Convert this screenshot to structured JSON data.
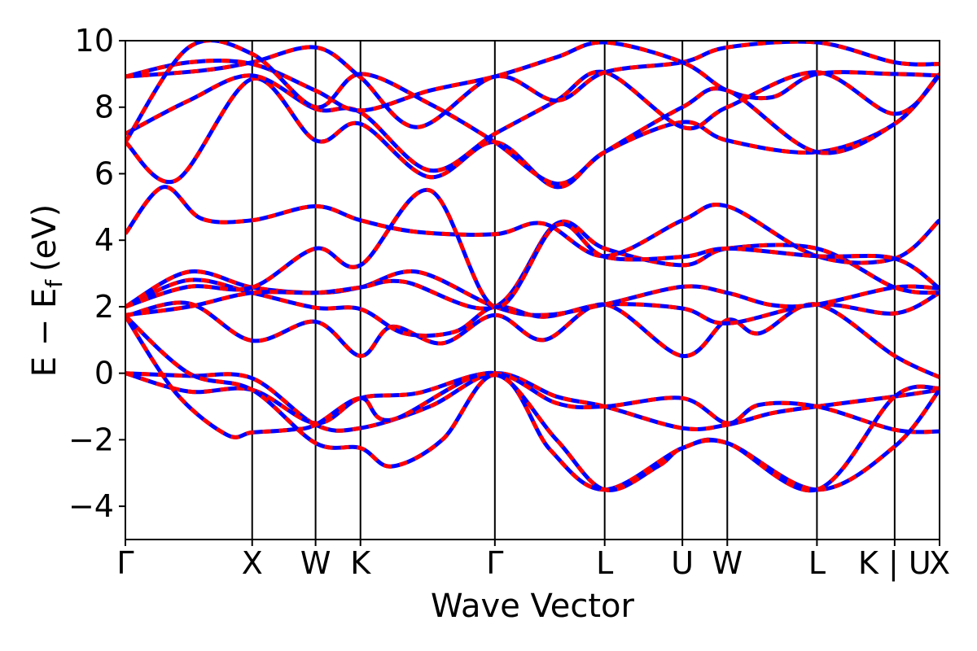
{
  "chart_data": {
    "type": "line",
    "title": "",
    "xlabel": "Wave Vector",
    "ylabel": "E − E",
    "ylabel_subscript": "f",
    "ylabel_unit": "(eV)",
    "ylim": [
      -5,
      10
    ],
    "yticks": [
      -4,
      -2,
      0,
      2,
      4,
      6,
      8,
      10
    ],
    "ytick_labels": [
      "−4",
      "−2",
      "0",
      "2",
      "4",
      "6",
      "8",
      "10"
    ],
    "kpoints": [
      {
        "label": "Γ",
        "k": 0.0
      },
      {
        "label": "X",
        "k": 1.0
      },
      {
        "label": "W",
        "k": 1.5
      },
      {
        "label": "K",
        "k": 1.854
      },
      {
        "label": "Γ",
        "k": 2.914
      },
      {
        "label": "L",
        "k": 3.78
      },
      {
        "label": "U",
        "k": 4.393
      },
      {
        "label": "W",
        "k": 4.747
      },
      {
        "label": "L",
        "k": 5.454
      },
      {
        "label": "K | U",
        "k": 6.067
      },
      {
        "label": "X",
        "k": 6.421
      }
    ],
    "xlim": [
      0,
      6.421
    ],
    "grid": false,
    "legend": "none",
    "series_style": [
      {
        "color": "#0000ff",
        "dash": "none",
        "width": 5
      },
      {
        "color": "#ff0000",
        "dash": "10 10",
        "width": 5
      }
    ],
    "series": [
      {
        "values": [
          [
            0.0,
            0.0
          ],
          [
            0.5,
            -0.08
          ],
          [
            1.0,
            -0.15
          ],
          [
            1.5,
            -1.55
          ],
          [
            1.854,
            -1.65
          ],
          [
            2.4,
            -1.0
          ],
          [
            2.914,
            0.0
          ],
          [
            3.4,
            -0.7
          ],
          [
            3.78,
            -1.0
          ],
          [
            4.393,
            -1.65
          ],
          [
            4.747,
            -1.55
          ],
          [
            5.1,
            -1.2
          ],
          [
            5.454,
            -1.0
          ],
          [
            6.067,
            -0.7
          ],
          [
            6.421,
            -0.5
          ]
        ]
      },
      {
        "values": [
          [
            0.0,
            0.0
          ],
          [
            0.5,
            -0.55
          ],
          [
            1.0,
            -0.5
          ],
          [
            1.5,
            -1.5
          ],
          [
            1.854,
            -0.75
          ],
          [
            2.3,
            -0.6
          ],
          [
            2.914,
            0.0
          ],
          [
            3.4,
            -0.9
          ],
          [
            3.78,
            -1.0
          ],
          [
            4.393,
            -0.75
          ],
          [
            4.747,
            -1.5
          ],
          [
            5.0,
            -0.95
          ],
          [
            5.454,
            -1.0
          ],
          [
            6.067,
            -1.7
          ],
          [
            6.421,
            -1.75
          ]
        ]
      },
      {
        "values": [
          [
            0.0,
            1.72
          ],
          [
            0.4,
            -0.6
          ],
          [
            0.8,
            -1.85
          ],
          [
            1.0,
            -1.78
          ],
          [
            1.3,
            -1.7
          ],
          [
            1.5,
            -1.55
          ],
          [
            1.854,
            -0.75
          ],
          [
            2.1,
            -1.4
          ],
          [
            2.914,
            0.0
          ],
          [
            3.35,
            -2.3
          ],
          [
            3.78,
            -3.5
          ],
          [
            4.393,
            -2.25
          ],
          [
            4.747,
            -2.1
          ],
          [
            5.454,
            -3.5
          ],
          [
            6.067,
            -2.2
          ],
          [
            6.421,
            -0.5
          ]
        ]
      },
      {
        "values": [
          [
            0.0,
            1.72
          ],
          [
            0.5,
            0.0
          ],
          [
            1.0,
            -0.5
          ],
          [
            1.5,
            -2.1
          ],
          [
            1.854,
            -2.25
          ],
          [
            2.1,
            -2.8
          ],
          [
            2.5,
            -2.0
          ],
          [
            2.914,
            -0.05
          ],
          [
            3.4,
            -2.0
          ],
          [
            3.78,
            -3.5
          ],
          [
            4.2,
            -2.8
          ],
          [
            4.393,
            -2.25
          ],
          [
            4.747,
            -2.1
          ],
          [
            5.454,
            -3.5
          ],
          [
            6.067,
            -0.7
          ],
          [
            6.421,
            -0.45
          ]
        ]
      },
      {
        "values": [
          [
            0.0,
            1.72
          ],
          [
            0.5,
            2.1
          ],
          [
            1.0,
            0.98
          ],
          [
            1.5,
            1.55
          ],
          [
            1.854,
            0.52
          ],
          [
            2.1,
            1.4
          ],
          [
            2.5,
            0.9
          ],
          [
            2.914,
            1.75
          ],
          [
            3.3,
            1.0
          ],
          [
            3.78,
            2.07
          ],
          [
            4.393,
            0.52
          ],
          [
            4.747,
            1.6
          ],
          [
            5.0,
            1.2
          ],
          [
            5.454,
            2.07
          ],
          [
            6.067,
            0.52
          ],
          [
            6.421,
            -0.12
          ]
        ]
      },
      {
        "values": [
          [
            0.0,
            2.0
          ],
          [
            0.5,
            2.8
          ],
          [
            1.0,
            2.42
          ],
          [
            1.5,
            1.97
          ],
          [
            1.854,
            1.93
          ],
          [
            2.2,
            1.2
          ],
          [
            2.6,
            1.25
          ],
          [
            2.914,
            2.0
          ],
          [
            3.3,
            1.7
          ],
          [
            3.78,
            2.07
          ],
          [
            4.393,
            1.95
          ],
          [
            4.747,
            1.5
          ],
          [
            5.454,
            2.07
          ],
          [
            6.067,
            1.8
          ],
          [
            6.421,
            2.42
          ]
        ]
      },
      {
        "values": [
          [
            0.0,
            2.0
          ],
          [
            0.5,
            3.05
          ],
          [
            1.0,
            2.58
          ],
          [
            1.5,
            2.42
          ],
          [
            1.854,
            2.58
          ],
          [
            2.3,
            3.05
          ],
          [
            2.914,
            2.0
          ],
          [
            3.3,
            1.75
          ],
          [
            3.78,
            2.07
          ],
          [
            4.393,
            2.6
          ],
          [
            4.747,
            2.42
          ],
          [
            5.1,
            2.05
          ],
          [
            5.454,
            2.07
          ],
          [
            6.067,
            2.58
          ],
          [
            6.421,
            2.55
          ]
        ]
      },
      {
        "values": [
          [
            0.0,
            1.75
          ],
          [
            0.5,
            2.0
          ],
          [
            1.0,
            2.42
          ],
          [
            1.5,
            2.42
          ],
          [
            1.854,
            2.58
          ],
          [
            2.2,
            2.75
          ],
          [
            2.914,
            2.0
          ],
          [
            3.4,
            4.5
          ],
          [
            3.78,
            3.75
          ],
          [
            4.393,
            3.25
          ],
          [
            4.747,
            3.75
          ],
          [
            5.454,
            3.75
          ],
          [
            6.067,
            2.58
          ],
          [
            6.421,
            2.42
          ]
        ]
      },
      {
        "values": [
          [
            0.0,
            4.2
          ],
          [
            0.3,
            5.6
          ],
          [
            0.6,
            4.65
          ],
          [
            1.0,
            4.6
          ],
          [
            1.5,
            5.02
          ],
          [
            1.854,
            4.6
          ],
          [
            2.3,
            4.25
          ],
          [
            2.914,
            4.18
          ],
          [
            3.3,
            4.5
          ],
          [
            3.78,
            3.52
          ],
          [
            4.393,
            4.6
          ],
          [
            4.747,
            5.02
          ],
          [
            5.454,
            3.52
          ],
          [
            6.067,
            3.45
          ],
          [
            6.421,
            4.6
          ]
        ]
      },
      {
        "values": [
          [
            0.0,
            2.0
          ],
          [
            0.5,
            2.6
          ],
          [
            1.0,
            2.58
          ],
          [
            1.5,
            3.75
          ],
          [
            1.854,
            3.25
          ],
          [
            2.4,
            5.5
          ],
          [
            2.914,
            2.0
          ],
          [
            3.4,
            4.45
          ],
          [
            3.78,
            3.5
          ],
          [
            4.393,
            3.5
          ],
          [
            4.747,
            3.75
          ],
          [
            5.454,
            3.52
          ],
          [
            6.067,
            3.45
          ],
          [
            6.421,
            2.55
          ]
        ]
      },
      {
        "values": [
          [
            0.0,
            6.95
          ],
          [
            0.4,
            5.8
          ],
          [
            1.0,
            8.85
          ],
          [
            1.5,
            7.0
          ],
          [
            1.854,
            7.5
          ],
          [
            2.4,
            5.9
          ],
          [
            2.914,
            6.95
          ],
          [
            3.4,
            5.6
          ],
          [
            3.78,
            6.65
          ],
          [
            4.393,
            7.55
          ],
          [
            4.747,
            7.0
          ],
          [
            5.454,
            6.65
          ],
          [
            6.067,
            7.5
          ],
          [
            6.421,
            9.0
          ]
        ]
      },
      {
        "values": [
          [
            0.0,
            7.2
          ],
          [
            0.5,
            8.2
          ],
          [
            1.0,
            8.95
          ],
          [
            1.5,
            7.95
          ],
          [
            1.854,
            7.85
          ],
          [
            2.4,
            6.1
          ],
          [
            2.914,
            7.2
          ],
          [
            3.4,
            8.2
          ],
          [
            3.78,
            9.05
          ],
          [
            4.393,
            7.4
          ],
          [
            4.747,
            8.0
          ],
          [
            5.454,
            9.05
          ],
          [
            6.067,
            7.8
          ],
          [
            6.421,
            8.95
          ]
        ]
      },
      {
        "values": [
          [
            0.0,
            8.92
          ],
          [
            0.6,
            9.1
          ],
          [
            1.0,
            9.35
          ],
          [
            1.5,
            9.8
          ],
          [
            1.854,
            8.9
          ],
          [
            2.3,
            7.4
          ],
          [
            2.914,
            8.92
          ],
          [
            3.4,
            8.2
          ],
          [
            3.78,
            9.05
          ],
          [
            4.393,
            9.35
          ],
          [
            4.747,
            9.8
          ],
          [
            5.454,
            9.95
          ],
          [
            6.067,
            9.35
          ],
          [
            6.421,
            9.3
          ]
        ]
      },
      {
        "values": [
          [
            0.0,
            8.92
          ],
          [
            0.5,
            9.35
          ],
          [
            1.0,
            9.3
          ],
          [
            1.5,
            8.5
          ],
          [
            1.854,
            7.9
          ],
          [
            2.4,
            8.5
          ],
          [
            2.914,
            8.92
          ],
          [
            3.4,
            9.5
          ],
          [
            3.78,
            9.95
          ],
          [
            4.393,
            9.35
          ],
          [
            4.747,
            8.5
          ],
          [
            5.1,
            8.3
          ],
          [
            5.454,
            9.0
          ],
          [
            6.067,
            9.0
          ],
          [
            6.421,
            8.95
          ]
        ]
      },
      {
        "values": [
          [
            0.0,
            6.95
          ],
          [
            0.5,
            9.8
          ],
          [
            1.0,
            9.6
          ],
          [
            1.5,
            8.0
          ],
          [
            1.854,
            9.0
          ],
          [
            2.4,
            8.1
          ],
          [
            2.914,
            6.95
          ],
          [
            3.4,
            5.7
          ],
          [
            3.78,
            6.65
          ],
          [
            4.393,
            8.0
          ],
          [
            4.747,
            8.5
          ],
          [
            5.454,
            6.65
          ],
          [
            6.067,
            7.5
          ],
          [
            6.421,
            9.0
          ]
        ]
      }
    ]
  }
}
